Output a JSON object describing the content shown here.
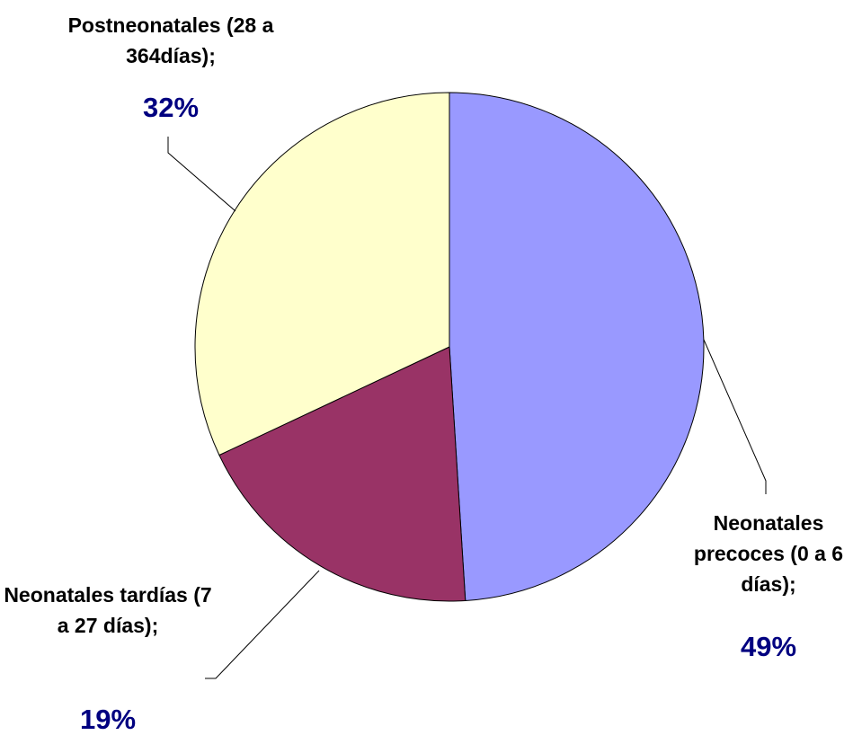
{
  "chart_data": {
    "type": "pie",
    "categories": [
      "Neonatales precoces (0 a 6 días);",
      "Neonatales tardías (7 a 27 días);",
      "Postneonatales (28 a 364días);"
    ],
    "values": [
      49,
      19,
      32
    ],
    "value_labels": [
      "49%",
      "19%",
      "32%"
    ],
    "colors": [
      "#9999ff",
      "#993366",
      "#ffffcc"
    ],
    "start_angle": 0,
    "direction": "clockwise"
  }
}
